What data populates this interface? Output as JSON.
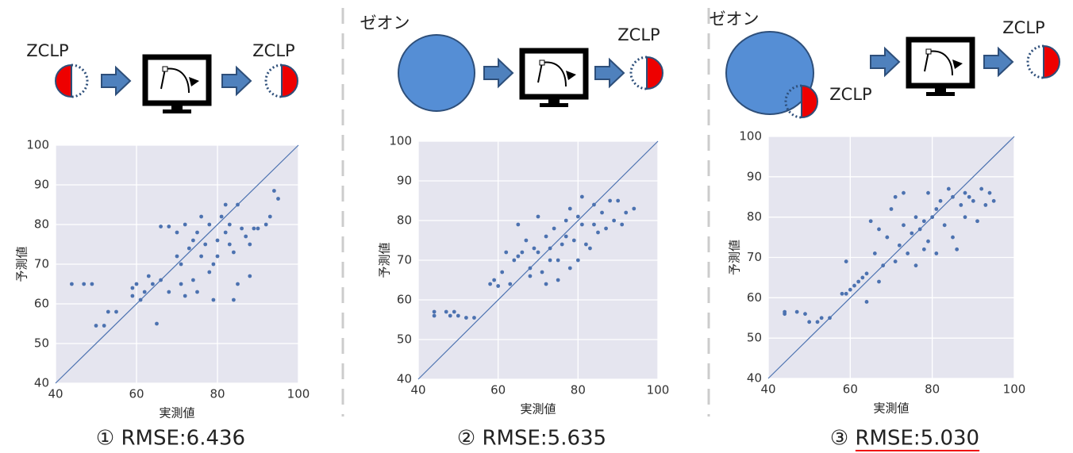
{
  "chart_data": [
    {
      "type": "scatter",
      "title": "① RMSE:6.436",
      "annotations": [
        "ZCLP",
        "ZCLP"
      ],
      "xlabel": "実測値",
      "ylabel": "予測値",
      "xlim": [
        40,
        100
      ],
      "ylim": [
        40,
        100
      ],
      "xticks": [
        40,
        60,
        80,
        100
      ],
      "yticks": [
        40,
        50,
        60,
        70,
        80,
        90,
        100
      ],
      "grid": true,
      "color": "#4c72b0",
      "x": [
        44,
        47,
        49,
        50,
        52,
        53,
        55,
        59,
        59,
        60,
        61,
        62,
        63,
        64,
        65,
        66,
        66,
        68,
        70,
        71,
        71,
        72,
        73,
        74,
        74,
        75,
        76,
        77,
        78,
        78,
        79,
        80,
        80,
        81,
        82,
        83,
        84,
        84,
        85,
        85,
        86,
        87,
        88,
        88,
        89,
        90,
        92,
        93,
        94,
        95,
        70,
        72,
        76,
        79,
        82,
        75,
        68,
        83
      ],
      "values": [
        65,
        65,
        65,
        54.5,
        54.5,
        58,
        58,
        62,
        64,
        65,
        61,
        63,
        67,
        65,
        55,
        66,
        79.5,
        79.5,
        72,
        70,
        65,
        62,
        74,
        76,
        66,
        78,
        72,
        75,
        80,
        68,
        61,
        76,
        72,
        82,
        78,
        80,
        73,
        61,
        85,
        65,
        79,
        77,
        75,
        67,
        79,
        79,
        80,
        82,
        88.5,
        86.5,
        78,
        80,
        82,
        70,
        85,
        63,
        63,
        75
      ]
    },
    {
      "type": "scatter",
      "title": "② RMSE:5.635",
      "annotations": [
        "ゼオン",
        "ZCLP"
      ],
      "xlabel": "実測値",
      "ylabel": "予測値",
      "xlim": [
        40,
        100
      ],
      "ylim": [
        40,
        100
      ],
      "xticks": [
        40,
        60,
        80,
        100
      ],
      "yticks": [
        40,
        50,
        60,
        70,
        80,
        90,
        100
      ],
      "grid": true,
      "color": "#4c72b0",
      "x": [
        44,
        44,
        47,
        48,
        49,
        50,
        52,
        54,
        58,
        59,
        60,
        61,
        62,
        63,
        64,
        65,
        66,
        67,
        68,
        69,
        70,
        70,
        71,
        72,
        72,
        73,
        74,
        75,
        75,
        76,
        77,
        78,
        78,
        79,
        80,
        81,
        81,
        82,
        83,
        84,
        85,
        86,
        87,
        88,
        89,
        90,
        91,
        92,
        94,
        65,
        68,
        73,
        77,
        80,
        84
      ],
      "values": [
        57,
        56,
        57,
        56,
        57,
        56,
        55.5,
        55.5,
        64,
        65,
        63.5,
        67,
        72,
        64,
        70,
        79,
        72,
        75,
        68,
        73,
        81,
        72,
        67,
        76,
        64,
        73,
        78,
        70,
        65,
        74,
        80,
        83,
        68,
        75,
        81,
        79,
        86,
        74,
        73,
        84,
        77,
        82,
        78,
        85,
        80,
        85,
        79,
        82,
        83,
        71,
        66,
        70,
        76,
        70,
        79
      ]
    },
    {
      "type": "scatter",
      "title": "③ RMSE:5.030",
      "annotations": [
        "ゼオン",
        "ZCLP",
        "ZCLP"
      ],
      "xlabel": "実測値",
      "ylabel": "予測値",
      "xlim": [
        40,
        100
      ],
      "ylim": [
        40,
        100
      ],
      "xticks": [
        40,
        60,
        80,
        100
      ],
      "yticks": [
        40,
        50,
        60,
        70,
        80,
        90,
        100
      ],
      "grid": true,
      "color": "#4c72b0",
      "x": [
        44,
        44,
        47,
        49,
        50,
        52,
        53,
        55,
        58,
        59,
        59,
        60,
        61,
        62,
        63,
        64,
        64,
        65,
        66,
        67,
        68,
        69,
        70,
        71,
        72,
        73,
        73,
        74,
        75,
        76,
        77,
        78,
        78,
        79,
        80,
        81,
        81,
        82,
        83,
        84,
        85,
        85,
        86,
        87,
        88,
        89,
        90,
        91,
        92,
        93,
        94,
        95,
        67,
        71,
        76,
        79,
        88
      ],
      "values": [
        56.5,
        56,
        56.5,
        56,
        54,
        54,
        55,
        55,
        61,
        61,
        69,
        62,
        63,
        64,
        65,
        66,
        59,
        79,
        71,
        64,
        68,
        75,
        82,
        69,
        73,
        86,
        78,
        71,
        76,
        80,
        77,
        79,
        72,
        86,
        80,
        82,
        71,
        84,
        78,
        87,
        85,
        75,
        72,
        83,
        86,
        85,
        84,
        79,
        87,
        83,
        86,
        84,
        77,
        85,
        68,
        74,
        80
      ]
    }
  ]
}
